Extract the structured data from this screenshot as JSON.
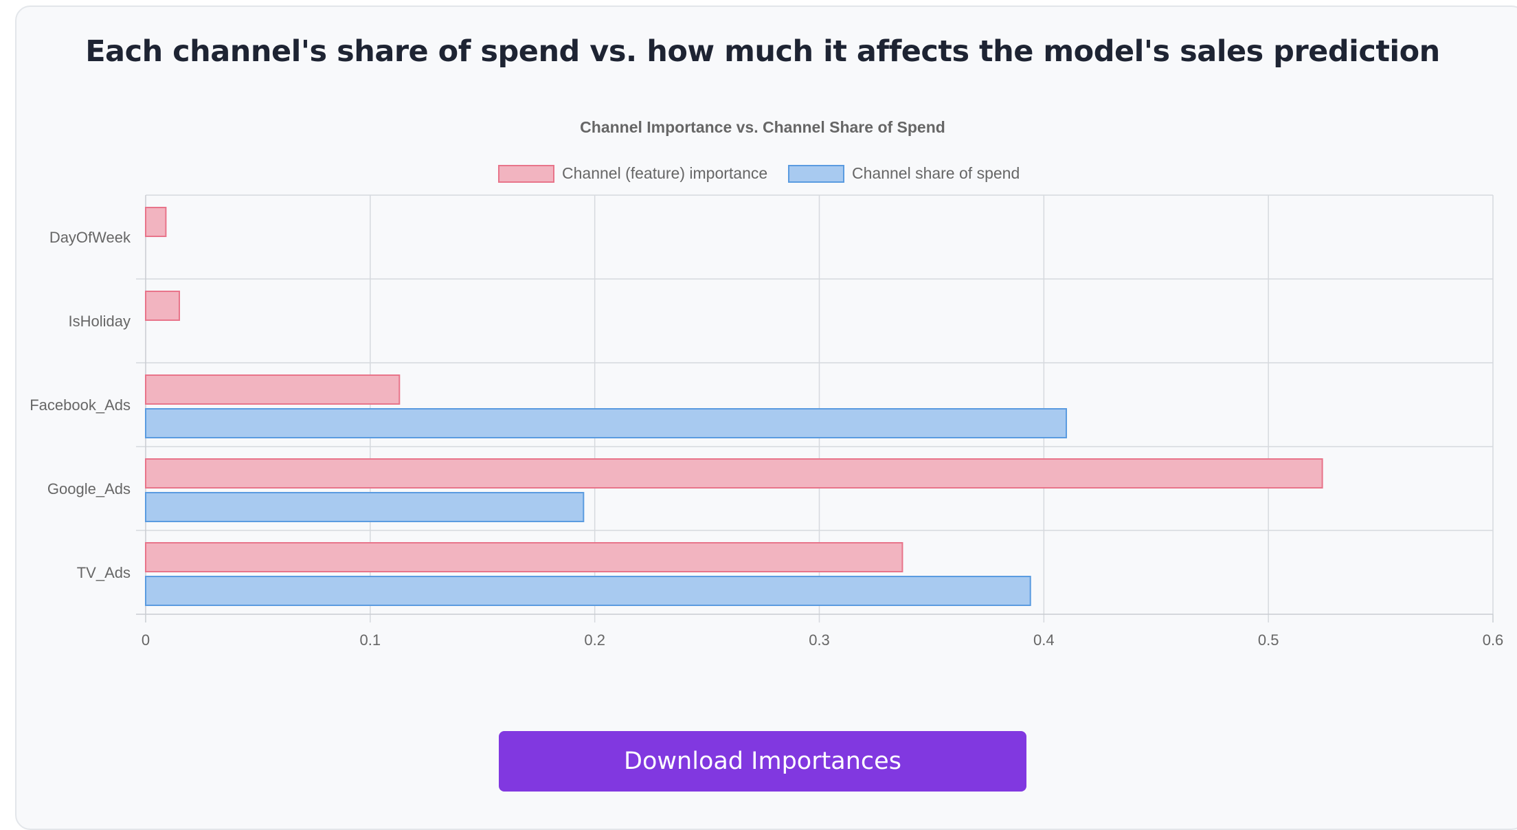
{
  "header": {
    "title": "Each channel's share of spend vs. how much it affects the model's sales prediction"
  },
  "chart_data": {
    "type": "bar",
    "orientation": "horizontal",
    "title": "Channel Importance vs. Channel Share of Spend",
    "categories": [
      "DayOfWeek",
      "IsHoliday",
      "Facebook_Ads",
      "Google_Ads",
      "TV_Ads"
    ],
    "series": [
      {
        "name": "Channel (feature) importance",
        "values": [
          0.009,
          0.015,
          0.113,
          0.524,
          0.337
        ],
        "color": "#f2b4c0",
        "border": "#e8748a"
      },
      {
        "name": "Channel share of spend",
        "values": [
          null,
          null,
          0.41,
          0.195,
          0.394
        ],
        "color": "#a8caf0",
        "border": "#5a9be0"
      }
    ],
    "xlim": [
      0,
      0.6
    ],
    "xticks": [
      "0",
      "0.1",
      "0.2",
      "0.3",
      "0.4",
      "0.5",
      "0.6"
    ],
    "legend": "top-center",
    "grid": true
  },
  "actions": {
    "download_label": "Download Importances"
  }
}
